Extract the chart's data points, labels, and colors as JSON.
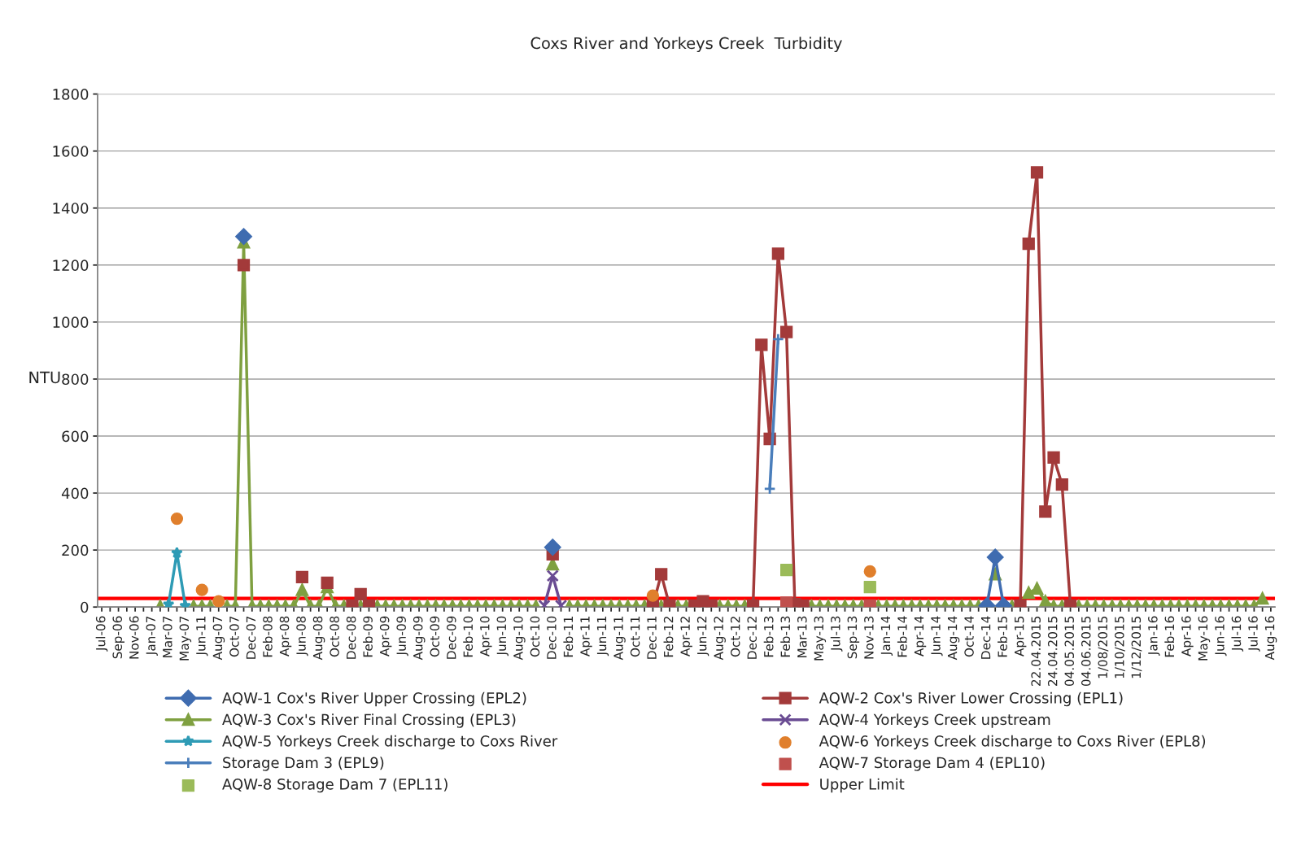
{
  "chart_data": {
    "type": "line",
    "title": "Coxs River and Yorkeys Creek  Turbidity",
    "ylabel": "NTU",
    "categories": [
      "Jul-06",
      null,
      "Sep-06",
      null,
      "Nov-06",
      null,
      "Jan-07",
      null,
      "Mar-07",
      null,
      "May-07",
      null,
      "Jun-11",
      null,
      "Aug-07",
      null,
      "Oct-07",
      null,
      "Dec-07",
      null,
      "Feb-08",
      null,
      "Apr-08",
      null,
      "Jun-08",
      null,
      "Aug-08",
      null,
      "Oct-08",
      null,
      "Dec-08",
      null,
      "Feb-09",
      null,
      "Apr-09",
      null,
      "Jun-09",
      null,
      "Aug-09",
      null,
      "Oct-09",
      null,
      "Dec-09",
      null,
      "Feb-10",
      null,
      "Apr-10",
      null,
      "Jun-10",
      null,
      "Aug-10",
      null,
      "Oct-10",
      null,
      "Dec-10",
      null,
      "Feb-11",
      null,
      "Apr-11",
      null,
      "Jun-11",
      null,
      "Aug-11",
      null,
      "Oct-11",
      null,
      "Dec-11",
      null,
      "Feb-12",
      null,
      "Apr-12",
      null,
      "Jun-12",
      null,
      "Aug-12",
      null,
      "Oct-12",
      null,
      "Dec-12",
      null,
      "Feb-13",
      null,
      "Feb-13",
      null,
      "Mar-13",
      null,
      "May-13",
      null,
      "Jul-13",
      null,
      "Sep-13",
      null,
      "Nov-13",
      null,
      "Jan-14",
      null,
      "Feb-14",
      null,
      "Apr-14",
      null,
      "Jun-14",
      null,
      "Aug-14",
      null,
      "Oct-14",
      null,
      "Dec-14",
      null,
      "Feb-15",
      null,
      "Apr-15",
      null,
      "22.04.2015",
      null,
      "24.04.2015",
      null,
      "04.05.2015",
      null,
      "04.06.2015",
      null,
      "1/08/2015",
      null,
      "1/10/2015",
      null,
      "1/12/2015",
      null,
      "Jan-16",
      null,
      "Feb-16",
      null,
      "Apr-16",
      null,
      "May-16",
      null,
      "Jun-16",
      null,
      "Jul-16",
      null,
      "Jul-16",
      null,
      "Aug-16"
    ],
    "ylim": [
      0,
      1800
    ],
    "yticks": [
      0,
      200,
      400,
      600,
      800,
      1000,
      1200,
      1400,
      1600,
      1800
    ],
    "grid": "y",
    "legend": "bottom",
    "series": [
      {
        "name": "AQW-1 Cox's River Upper Crossing (EPL2)",
        "color": "#3f6cb0",
        "marker": "diamond",
        "values": [
          null,
          null,
          null,
          null,
          null,
          null,
          null,
          null,
          null,
          null,
          null,
          null,
          null,
          null,
          null,
          null,
          null,
          1300,
          null,
          null,
          null,
          null,
          null,
          null,
          null,
          null,
          null,
          null,
          null,
          null,
          null,
          null,
          null,
          null,
          null,
          null,
          null,
          null,
          null,
          null,
          null,
          null,
          null,
          null,
          null,
          null,
          null,
          null,
          null,
          null,
          null,
          null,
          null,
          null,
          210,
          null,
          null,
          null,
          null,
          null,
          null,
          null,
          null,
          null,
          null,
          null,
          null,
          null,
          null,
          null,
          null,
          null,
          null,
          null,
          null,
          null,
          null,
          null,
          null,
          null,
          null,
          null,
          null,
          null,
          null,
          null,
          null,
          null,
          null,
          null,
          null,
          null,
          null,
          null,
          null,
          null,
          null,
          null,
          null,
          null,
          null,
          null,
          null,
          null,
          null,
          null,
          5,
          175,
          5,
          null,
          null,
          null,
          null,
          null,
          null,
          null,
          null,
          null,
          null,
          null,
          null,
          null,
          null,
          null,
          null,
          null,
          null,
          null,
          null,
          null,
          null,
          null,
          null,
          null,
          null,
          null,
          null,
          null,
          null,
          null,
          null
        ]
      },
      {
        "name": "AQW-2 Cox's River Lower Crossing (EPL1)",
        "color": "#a33a3a",
        "marker": "square",
        "values": [
          null,
          null,
          null,
          null,
          null,
          null,
          null,
          null,
          null,
          null,
          null,
          null,
          null,
          null,
          null,
          null,
          null,
          1200,
          null,
          null,
          null,
          null,
          null,
          null,
          105,
          null,
          null,
          85,
          null,
          null,
          5,
          45,
          5,
          null,
          null,
          null,
          null,
          null,
          null,
          null,
          null,
          null,
          null,
          null,
          null,
          null,
          null,
          null,
          null,
          null,
          null,
          null,
          null,
          null,
          185,
          null,
          null,
          null,
          null,
          null,
          null,
          null,
          null,
          null,
          null,
          null,
          5,
          115,
          5,
          null,
          null,
          5,
          20,
          5,
          null,
          null,
          null,
          null,
          5,
          920,
          590,
          1240,
          965,
          10,
          5,
          null,
          null,
          null,
          null,
          null,
          null,
          null,
          null,
          null,
          null,
          null,
          null,
          null,
          null,
          null,
          null,
          null,
          null,
          null,
          null,
          null,
          null,
          null,
          null,
          null,
          5,
          1275,
          1525,
          335,
          525,
          430,
          5,
          null,
          null,
          null,
          null,
          null,
          null,
          null,
          null,
          null,
          null,
          null,
          null,
          null,
          null,
          null,
          null,
          null,
          null,
          null,
          null,
          null,
          null,
          null,
          null
        ]
      },
      {
        "name": "AQW-3 Cox's River Final Crossing (EPL3)",
        "color": "#7fa040",
        "marker": "triangle",
        "values": [
          null,
          null,
          null,
          null,
          null,
          null,
          null,
          3,
          null,
          null,
          null,
          3,
          3,
          3,
          null,
          3,
          3,
          1280,
          3,
          3,
          3,
          3,
          3,
          3,
          60,
          3,
          3,
          70,
          3,
          3,
          null,
          3,
          null,
          3,
          3,
          3,
          3,
          3,
          3,
          3,
          3,
          3,
          3,
          3,
          3,
          3,
          3,
          3,
          3,
          3,
          3,
          3,
          3,
          null,
          150,
          null,
          3,
          3,
          3,
          3,
          3,
          3,
          3,
          3,
          3,
          3,
          null,
          3,
          null,
          3,
          3,
          null,
          null,
          null,
          3,
          3,
          3,
          3,
          null,
          null,
          null,
          null,
          null,
          null,
          null,
          3,
          3,
          3,
          3,
          3,
          3,
          3,
          null,
          3,
          3,
          3,
          3,
          3,
          3,
          3,
          3,
          3,
          3,
          3,
          3,
          3,
          null,
          115,
          null,
          3,
          null,
          50,
          65,
          20,
          3,
          3,
          null,
          3,
          3,
          3,
          3,
          3,
          3,
          3,
          3,
          3,
          3,
          3,
          3,
          3,
          3,
          3,
          3,
          3,
          3,
          3,
          3,
          3,
          3,
          30,
          null
        ]
      },
      {
        "name": "AQW-4 Yorkeys Creek upstream",
        "color": "#6a4c93",
        "marker": "cross",
        "values": [
          null,
          null,
          null,
          null,
          null,
          null,
          null,
          null,
          null,
          null,
          null,
          null,
          null,
          null,
          null,
          null,
          null,
          null,
          null,
          null,
          null,
          null,
          null,
          null,
          null,
          null,
          null,
          null,
          null,
          null,
          null,
          null,
          null,
          null,
          null,
          null,
          null,
          null,
          null,
          null,
          null,
          null,
          null,
          null,
          null,
          null,
          null,
          null,
          null,
          null,
          null,
          null,
          null,
          5,
          110,
          5,
          null,
          null,
          null,
          null,
          null,
          null,
          null,
          null,
          null,
          null,
          null,
          null,
          null,
          null,
          null,
          null,
          null,
          null,
          null,
          null,
          null,
          null,
          null,
          null,
          null,
          null,
          null,
          null,
          null,
          null,
          null,
          null,
          null,
          null,
          null,
          null,
          null,
          null,
          null,
          null,
          null,
          null,
          null,
          null,
          null,
          null,
          null,
          null,
          null,
          null,
          null,
          null,
          null,
          null,
          null,
          null,
          null,
          null,
          null,
          null,
          null,
          null,
          null,
          null,
          null,
          null,
          null,
          null,
          null,
          null,
          null,
          null,
          null,
          null,
          null,
          null,
          null,
          null,
          null,
          null,
          null,
          null,
          null,
          null,
          null
        ]
      },
      {
        "name": "AQW-5 Yorkeys Creek discharge to Coxs River",
        "color": "#2e9bb5",
        "marker": "star",
        "values": [
          null,
          null,
          null,
          null,
          null,
          null,
          null,
          null,
          10,
          190,
          5,
          null,
          null,
          null,
          null,
          null,
          null,
          null,
          null,
          null,
          null,
          null,
          null,
          null,
          null,
          null,
          null,
          null,
          null,
          null,
          null,
          null,
          null,
          null,
          null,
          null,
          null,
          null,
          null,
          null,
          null,
          null,
          null,
          null,
          null,
          null,
          null,
          null,
          null,
          null,
          null,
          null,
          null,
          null,
          null,
          null,
          null,
          null,
          null,
          null,
          null,
          null,
          null,
          null,
          null,
          null,
          null,
          null,
          null,
          null,
          null,
          null,
          null,
          null,
          null,
          null,
          null,
          null,
          null,
          null,
          null,
          null,
          null,
          null,
          null,
          null,
          null,
          null,
          null,
          null,
          null,
          null,
          null,
          null,
          null,
          null,
          null,
          null,
          null,
          null,
          null,
          null,
          null,
          null,
          null,
          null,
          null,
          null,
          null,
          null,
          null,
          null,
          null,
          null,
          null,
          null,
          null,
          null,
          null,
          null,
          null,
          null,
          null,
          null,
          null,
          null,
          null,
          null,
          null,
          null,
          null,
          null,
          null,
          null,
          null,
          null,
          null,
          null,
          null,
          null,
          null
        ]
      },
      {
        "name": "AQW-6 Yorkeys Creek discharge to Coxs River (EPL8)",
        "type": "scatter",
        "color": "#e07f2c",
        "marker": "circle",
        "values": [
          null,
          null,
          null,
          null,
          null,
          null,
          null,
          null,
          null,
          310,
          null,
          null,
          60,
          null,
          20,
          null,
          null,
          null,
          null,
          null,
          null,
          null,
          null,
          null,
          null,
          null,
          null,
          null,
          null,
          null,
          null,
          null,
          null,
          null,
          null,
          null,
          null,
          null,
          null,
          null,
          null,
          null,
          null,
          null,
          null,
          null,
          null,
          null,
          null,
          null,
          null,
          null,
          null,
          null,
          null,
          null,
          null,
          null,
          null,
          null,
          null,
          null,
          null,
          null,
          null,
          null,
          40,
          null,
          null,
          null,
          null,
          null,
          null,
          null,
          null,
          null,
          null,
          null,
          null,
          null,
          null,
          null,
          null,
          null,
          null,
          null,
          null,
          null,
          null,
          null,
          null,
          null,
          125,
          null,
          null,
          null,
          null,
          null,
          null,
          null,
          null,
          null,
          null,
          null,
          null,
          null,
          null,
          null,
          null,
          null,
          null,
          null,
          null,
          null,
          null,
          null,
          null,
          null,
          null,
          null,
          null,
          null,
          null,
          null,
          null,
          null,
          null,
          null,
          null,
          null,
          null,
          null,
          null,
          null,
          null,
          null,
          null,
          null,
          null,
          null,
          null
        ]
      },
      {
        "name": "Storage Dam 3 (EPL9)",
        "color": "#4a7ebb",
        "marker": "plus",
        "values": [
          null,
          null,
          null,
          null,
          null,
          null,
          null,
          null,
          null,
          null,
          null,
          null,
          null,
          null,
          null,
          null,
          null,
          null,
          null,
          null,
          null,
          null,
          null,
          null,
          null,
          null,
          null,
          null,
          null,
          null,
          null,
          null,
          null,
          null,
          null,
          null,
          null,
          null,
          null,
          null,
          null,
          null,
          null,
          null,
          null,
          null,
          null,
          null,
          null,
          null,
          null,
          null,
          null,
          null,
          null,
          null,
          null,
          null,
          null,
          null,
          null,
          null,
          null,
          null,
          null,
          null,
          null,
          null,
          null,
          null,
          null,
          null,
          null,
          null,
          null,
          null,
          null,
          null,
          null,
          null,
          415,
          940,
          null,
          null,
          null,
          null,
          null,
          null,
          null,
          null,
          null,
          null,
          null,
          null,
          null,
          null,
          null,
          null,
          null,
          null,
          null,
          null,
          null,
          null,
          null,
          null,
          null,
          null,
          null,
          null,
          null,
          null,
          null,
          null,
          null,
          null,
          null,
          null,
          null,
          null,
          null,
          null,
          null,
          null,
          null,
          null,
          null,
          null,
          null,
          null,
          null,
          null,
          null,
          null,
          null,
          null,
          null,
          null,
          null,
          null,
          null
        ]
      },
      {
        "name": "AQW-7 Storage Dam 4 (EPL10)",
        "type": "scatter",
        "color": "#c0504d",
        "marker": "square",
        "values": [
          null,
          null,
          null,
          null,
          null,
          null,
          null,
          null,
          null,
          null,
          null,
          null,
          null,
          null,
          null,
          null,
          null,
          null,
          null,
          null,
          null,
          null,
          null,
          null,
          null,
          null,
          null,
          null,
          null,
          null,
          null,
          null,
          null,
          null,
          null,
          null,
          null,
          null,
          null,
          null,
          null,
          null,
          null,
          null,
          null,
          null,
          null,
          null,
          null,
          null,
          null,
          null,
          null,
          null,
          null,
          null,
          null,
          null,
          null,
          null,
          null,
          null,
          null,
          null,
          null,
          null,
          null,
          null,
          null,
          null,
          null,
          null,
          null,
          null,
          null,
          null,
          null,
          null,
          null,
          null,
          null,
          null,
          15,
          null,
          null,
          null,
          null,
          null,
          null,
          null,
          null,
          null,
          5,
          null,
          null,
          null,
          null,
          null,
          null,
          null,
          null,
          null,
          null,
          null,
          null,
          null,
          null,
          null,
          null,
          null,
          null,
          null,
          null,
          null,
          null,
          null,
          null,
          null,
          null,
          null,
          null,
          null,
          null,
          null,
          null,
          null,
          null,
          null,
          null,
          null,
          null,
          null,
          null,
          null,
          null,
          null,
          null,
          null,
          null,
          null,
          null
        ]
      },
      {
        "name": "AQW-8 Storage Dam 7 (EPL11)",
        "type": "scatter",
        "color": "#9bbb59",
        "marker": "square",
        "values": [
          null,
          null,
          null,
          null,
          null,
          null,
          null,
          null,
          null,
          null,
          null,
          null,
          null,
          null,
          null,
          null,
          null,
          null,
          null,
          null,
          null,
          null,
          null,
          null,
          null,
          null,
          null,
          null,
          null,
          null,
          null,
          null,
          null,
          null,
          null,
          null,
          null,
          null,
          null,
          null,
          null,
          null,
          null,
          null,
          null,
          null,
          null,
          null,
          null,
          null,
          null,
          null,
          null,
          null,
          null,
          null,
          null,
          null,
          null,
          null,
          null,
          null,
          null,
          null,
          null,
          null,
          null,
          null,
          null,
          null,
          null,
          null,
          null,
          null,
          null,
          null,
          null,
          null,
          null,
          null,
          null,
          null,
          130,
          null,
          null,
          null,
          null,
          null,
          null,
          null,
          null,
          null,
          70,
          null,
          null,
          null,
          null,
          null,
          null,
          null,
          null,
          null,
          null,
          null,
          null,
          null,
          null,
          null,
          null,
          null,
          null,
          null,
          null,
          null,
          null,
          null,
          null,
          null,
          null,
          null,
          null,
          null,
          null,
          null,
          null,
          null,
          null,
          null,
          null,
          null,
          null,
          null,
          null,
          null,
          null,
          null,
          null,
          null,
          null,
          null,
          null
        ]
      }
    ],
    "ref_lines": [
      {
        "axis": "y",
        "value": 30,
        "label": "Upper Limit",
        "color": "#ff0000"
      }
    ]
  }
}
